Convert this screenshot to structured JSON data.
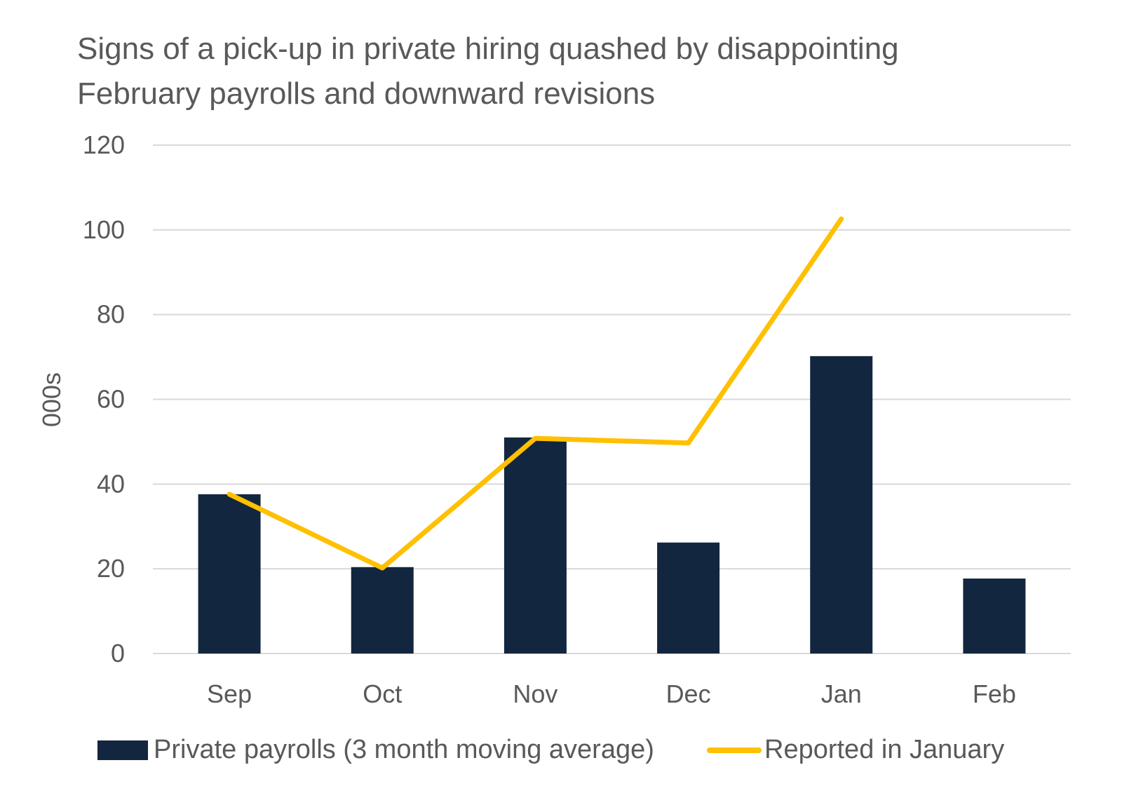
{
  "chart_data": {
    "type": "bar",
    "title": "Signs of a pick-up in private hiring quashed by disappointing February payrolls and downward revisions",
    "xlabel": "",
    "ylabel": "000s",
    "ylim": [
      0,
      120
    ],
    "yticks": [
      0,
      20,
      40,
      60,
      80,
      100,
      120
    ],
    "grid": true,
    "legend_position": "bottom",
    "categories": [
      "Sep",
      "Oct",
      "Nov",
      "Dec",
      "Jan",
      "Feb"
    ],
    "series": [
      {
        "name": "Private payrolls (3 month moving average)",
        "type": "bar",
        "color": "#13263F",
        "values": [
          37.6,
          20.4,
          51.0,
          26.2,
          70.2,
          17.7
        ]
      },
      {
        "name": "Reported in January",
        "type": "line",
        "color": "#FFC000",
        "values": [
          37.6,
          20.2,
          50.8,
          49.7,
          102.6,
          null
        ]
      }
    ]
  }
}
